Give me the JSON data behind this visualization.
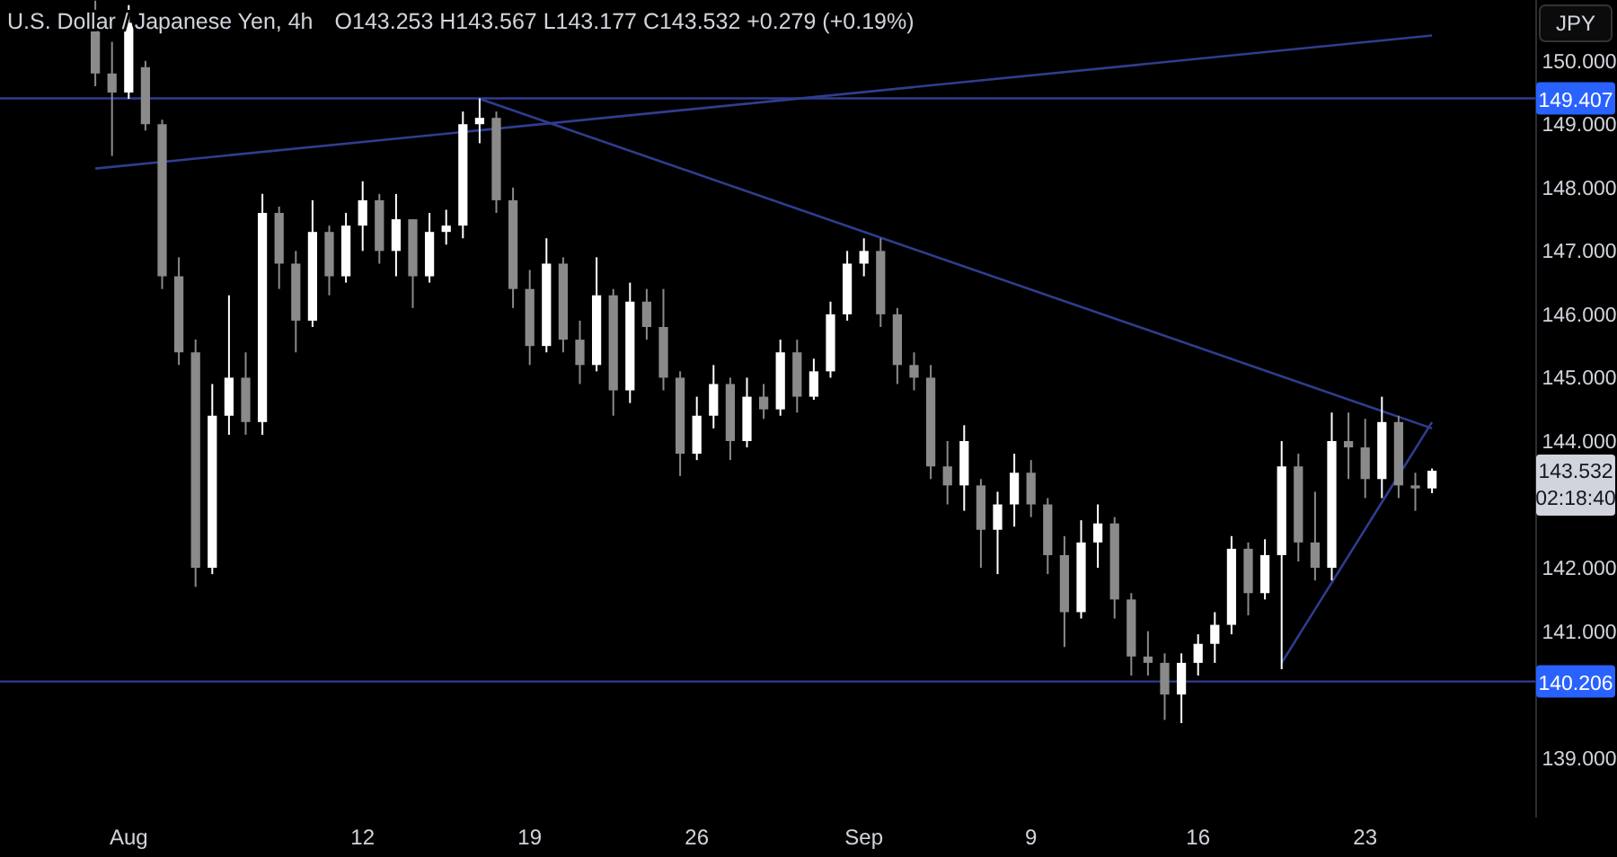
{
  "chart_data": {
    "type": "candlestick",
    "title": "U.S. Dollar / Japanese Yen, 4h",
    "subtitle": "O143.253 H143.567 L143.177 C143.532 +0.279 (+0.19%)",
    "categories": [
      null,
      null,
      "Aug",
      null,
      null,
      null,
      null,
      null,
      null,
      null,
      null,
      null,
      null,
      null,
      null,
      null,
      "12",
      null,
      null,
      null,
      null,
      null,
      null,
      null,
      null,
      null,
      "19",
      null,
      null,
      null,
      null,
      null,
      null,
      null,
      null,
      null,
      "26",
      null,
      null,
      null,
      null,
      null,
      null,
      null,
      null,
      null,
      "Sep",
      null,
      null,
      null,
      null,
      null,
      null,
      null,
      null,
      null,
      "9",
      null,
      null,
      null,
      null,
      null,
      null,
      null,
      null,
      null,
      "16",
      null,
      null,
      null,
      null,
      null,
      null,
      null,
      null,
      null,
      "23",
      null,
      null,
      null,
      null
    ],
    "ohlc": [
      [
        150.5,
        150.95,
        149.6,
        149.8
      ],
      [
        149.8,
        150.3,
        148.5,
        149.5
      ],
      [
        149.5,
        150.88,
        149.4,
        150.6
      ],
      [
        149.9,
        150.0,
        148.9,
        149.0
      ],
      [
        149.0,
        149.07,
        146.4,
        146.6
      ],
      [
        146.6,
        146.9,
        145.2,
        145.4
      ],
      [
        145.4,
        145.6,
        141.7,
        142.0
      ],
      [
        142.0,
        144.9,
        141.9,
        144.4
      ],
      [
        144.4,
        146.3,
        144.1,
        145.0
      ],
      [
        145.0,
        145.4,
        144.1,
        144.3
      ],
      [
        144.3,
        147.9,
        144.1,
        147.6
      ],
      [
        147.6,
        147.7,
        146.4,
        146.8
      ],
      [
        146.8,
        147.0,
        145.4,
        145.9
      ],
      [
        145.9,
        147.8,
        145.8,
        147.3
      ],
      [
        147.3,
        147.4,
        146.3,
        146.6
      ],
      [
        146.6,
        147.6,
        146.5,
        147.4
      ],
      [
        147.4,
        148.1,
        147.0,
        147.8
      ],
      [
        147.8,
        147.9,
        146.8,
        147.0
      ],
      [
        147.0,
        147.9,
        146.6,
        147.5
      ],
      [
        147.5,
        147.5,
        146.1,
        146.6
      ],
      [
        146.6,
        147.6,
        146.5,
        147.3
      ],
      [
        147.3,
        147.65,
        147.1,
        147.4
      ],
      [
        147.4,
        149.2,
        147.2,
        149.0
      ],
      [
        149.0,
        149.407,
        148.7,
        149.1
      ],
      [
        149.1,
        149.2,
        147.6,
        147.8
      ],
      [
        147.8,
        148.0,
        146.1,
        146.4
      ],
      [
        146.4,
        146.7,
        145.2,
        145.5
      ],
      [
        145.5,
        147.2,
        145.4,
        146.8
      ],
      [
        146.8,
        146.9,
        145.4,
        145.6
      ],
      [
        145.6,
        145.9,
        144.9,
        145.2
      ],
      [
        145.2,
        146.9,
        145.1,
        146.3
      ],
      [
        146.3,
        146.4,
        144.4,
        144.8
      ],
      [
        144.8,
        146.5,
        144.6,
        146.2
      ],
      [
        146.2,
        146.4,
        145.6,
        145.8
      ],
      [
        145.8,
        146.4,
        144.8,
        145.0
      ],
      [
        145.0,
        145.1,
        143.45,
        143.8
      ],
      [
        143.8,
        144.7,
        143.7,
        144.4
      ],
      [
        144.4,
        145.2,
        144.2,
        144.9
      ],
      [
        144.9,
        145.0,
        143.7,
        144.0
      ],
      [
        144.0,
        145.0,
        143.9,
        144.7
      ],
      [
        144.7,
        144.9,
        144.35,
        144.5
      ],
      [
        144.5,
        145.6,
        144.4,
        145.4
      ],
      [
        145.4,
        145.6,
        144.45,
        144.7
      ],
      [
        144.7,
        145.3,
        144.65,
        145.1
      ],
      [
        145.1,
        146.2,
        145.0,
        146.0
      ],
      [
        146.0,
        147.0,
        145.9,
        146.8
      ],
      [
        146.8,
        147.2,
        146.6,
        147.0
      ],
      [
        147.0,
        147.2,
        145.8,
        146.0
      ],
      [
        146.0,
        146.1,
        144.9,
        145.2
      ],
      [
        145.2,
        145.4,
        144.8,
        145.0
      ],
      [
        145.0,
        145.2,
        143.4,
        143.6
      ],
      [
        143.6,
        144.0,
        143.0,
        143.3
      ],
      [
        143.3,
        144.25,
        142.9,
        144.0
      ],
      [
        143.3,
        143.4,
        142.0,
        142.6
      ],
      [
        142.6,
        143.2,
        141.9,
        143.0
      ],
      [
        143.0,
        143.8,
        142.65,
        143.5
      ],
      [
        143.5,
        143.7,
        142.8,
        143.0
      ],
      [
        143.0,
        143.1,
        141.9,
        142.2
      ],
      [
        142.2,
        142.5,
        140.75,
        141.3
      ],
      [
        141.3,
        142.75,
        141.2,
        142.4
      ],
      [
        142.4,
        143.0,
        142.0,
        142.7
      ],
      [
        142.7,
        142.8,
        141.2,
        141.5
      ],
      [
        141.5,
        141.6,
        140.3,
        140.6
      ],
      [
        140.6,
        141.0,
        140.3,
        140.5
      ],
      [
        140.5,
        140.65,
        139.6,
        140.0
      ],
      [
        140.0,
        140.65,
        139.55,
        140.5
      ],
      [
        140.5,
        140.95,
        140.3,
        140.8
      ],
      [
        140.8,
        141.3,
        140.5,
        141.1
      ],
      [
        141.1,
        142.5,
        140.95,
        142.3
      ],
      [
        142.3,
        142.4,
        141.25,
        141.6
      ],
      [
        141.6,
        142.45,
        141.5,
        142.2
      ],
      [
        142.2,
        144.0,
        140.4,
        143.6
      ],
      [
        143.6,
        143.8,
        142.1,
        142.4
      ],
      [
        142.4,
        143.2,
        141.8,
        142.0
      ],
      [
        142.0,
        144.45,
        141.8,
        144.0
      ],
      [
        144.0,
        144.45,
        143.4,
        143.9
      ],
      [
        143.9,
        144.35,
        143.1,
        143.4
      ],
      [
        143.4,
        144.7,
        143.1,
        144.3
      ],
      [
        144.3,
        144.4,
        143.1,
        143.3
      ],
      [
        143.3,
        143.5,
        142.9,
        143.253
      ],
      [
        143.253,
        143.567,
        143.177,
        143.532
      ]
    ],
    "series": [
      {
        "type": "line",
        "color": "#2f3d8f",
        "values": [
          148.3,
          null,
          null,
          null,
          null,
          null,
          null,
          null,
          null,
          null,
          null,
          null,
          null,
          null,
          null,
          null,
          null,
          null,
          null,
          null,
          null,
          null,
          null,
          null,
          null,
          null,
          null,
          null,
          null,
          null,
          null,
          null,
          null,
          null,
          null,
          null,
          null,
          null,
          null,
          null,
          null,
          null,
          null,
          null,
          null,
          null,
          null,
          null,
          null,
          null,
          null,
          null,
          null,
          null,
          null,
          null,
          null,
          null,
          null,
          null,
          null,
          null,
          null,
          null,
          null,
          null,
          null,
          null,
          null,
          null,
          null,
          null,
          null,
          null,
          null,
          null,
          null,
          null,
          null,
          null,
          150.4
        ]
      },
      {
        "type": "line",
        "color": "#2f3d8f",
        "values": [
          null,
          null,
          null,
          null,
          null,
          null,
          null,
          null,
          null,
          null,
          null,
          null,
          null,
          null,
          null,
          null,
          null,
          null,
          null,
          null,
          null,
          null,
          null,
          149.4,
          null,
          null,
          null,
          null,
          null,
          null,
          null,
          null,
          null,
          null,
          null,
          null,
          null,
          null,
          null,
          null,
          null,
          null,
          null,
          null,
          null,
          null,
          null,
          null,
          null,
          null,
          null,
          null,
          null,
          null,
          null,
          null,
          null,
          null,
          null,
          null,
          null,
          null,
          null,
          null,
          null,
          null,
          null,
          null,
          null,
          null,
          null,
          null,
          null,
          null,
          null,
          null,
          null,
          null,
          null,
          null,
          144.2
        ]
      },
      {
        "type": "line",
        "color": "#2f3d8f",
        "values": [
          null,
          null,
          null,
          null,
          null,
          null,
          null,
          null,
          null,
          null,
          null,
          null,
          null,
          null,
          null,
          null,
          null,
          null,
          null,
          null,
          null,
          null,
          null,
          null,
          null,
          null,
          null,
          null,
          null,
          null,
          null,
          null,
          null,
          null,
          null,
          null,
          null,
          null,
          null,
          null,
          null,
          null,
          null,
          null,
          null,
          null,
          null,
          null,
          null,
          null,
          null,
          null,
          null,
          null,
          null,
          null,
          null,
          null,
          null,
          null,
          null,
          null,
          null,
          null,
          null,
          null,
          null,
          null,
          null,
          null,
          null,
          140.5,
          null,
          null,
          null,
          null,
          null,
          null,
          null,
          null,
          144.3
        ]
      }
    ],
    "ref_lines": [
      {
        "axis": "y",
        "value": 149.407,
        "label": "149.407",
        "color": "#2f3d8f"
      },
      {
        "axis": "y",
        "value": 140.206,
        "label": "140.206",
        "color": "#2f3d8f"
      }
    ],
    "annotations": [
      "JPY",
      "143.532",
      "02:18:40"
    ],
    "ylim": [
      138.06,
      150.96
    ],
    "yticks": [
      {
        "value": 139,
        "label": "139.000"
      },
      {
        "value": 141,
        "label": "141.000"
      },
      {
        "value": 142,
        "label": "142.000"
      },
      {
        "value": 144,
        "label": "144.000"
      },
      {
        "value": 145,
        "label": "145.000"
      },
      {
        "value": 146,
        "label": "146.000"
      },
      {
        "value": 147,
        "label": "147.000"
      },
      {
        "value": 148,
        "label": "148.000"
      },
      {
        "value": 149,
        "label": "149.000"
      },
      {
        "value": 150,
        "label": "150.000"
      }
    ],
    "grid": false
  }
}
